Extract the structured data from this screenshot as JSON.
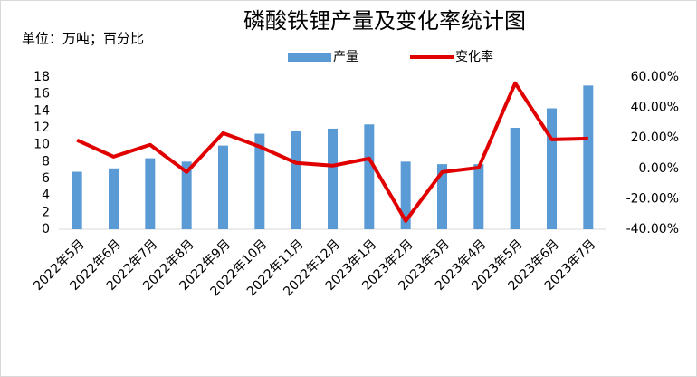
{
  "chart_data": {
    "type": "combo",
    "title": "磷酸铁锂产量及变化率统计图",
    "subtitle": "单位：万吨；百分比",
    "categories": [
      "2022年5月",
      "2022年6月",
      "2022年7月",
      "2022年8月",
      "2022年9月",
      "2022年10月",
      "2022年11月",
      "2022年12月",
      "2023年1月",
      "2023年2月",
      "2023年3月",
      "2023年4月",
      "2023年5月",
      "2023年6月",
      "2023年7月"
    ],
    "series": [
      {
        "name": "产量",
        "type": "bar",
        "color": "#5b9bd5",
        "values": [
          6.8,
          7.2,
          8.4,
          8.0,
          9.9,
          11.3,
          11.6,
          11.9,
          12.4,
          8.0,
          7.7,
          7.7,
          12.0,
          14.3,
          17.0
        ]
      },
      {
        "name": "变化率",
        "type": "line",
        "axis": "y2",
        "color": "#e00000",
        "values": [
          18.5,
          7.7,
          15.5,
          -2.4,
          23.2,
          14.3,
          3.6,
          1.8,
          6.5,
          -34.5,
          -2.4,
          0.5,
          56,
          19,
          19.6
        ]
      }
    ],
    "ylim": [
      0,
      18
    ],
    "yticks": [
      0,
      2,
      4,
      6,
      8,
      10,
      12,
      14,
      16,
      18
    ],
    "y2lim": [
      -40,
      60
    ],
    "y2ticks": [
      {
        "value": -40,
        "label": "-40.00%"
      },
      {
        "value": -20,
        "label": "-20.00%"
      },
      {
        "value": 0,
        "label": "0.00%"
      },
      {
        "value": 20,
        "label": "20.00%"
      },
      {
        "value": 40,
        "label": "40.00%"
      },
      {
        "value": 60,
        "label": "60.00%"
      }
    ],
    "legend": "top",
    "grid": false
  }
}
